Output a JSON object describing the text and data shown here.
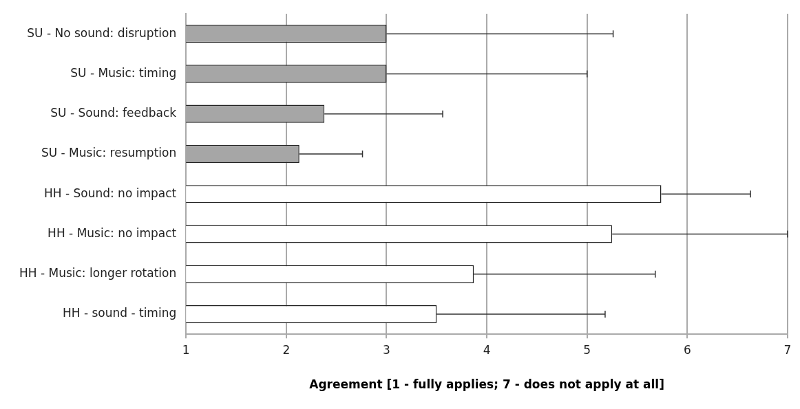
{
  "chart_data": {
    "type": "bar",
    "orientation": "horizontal",
    "xlabel": "Agreement [1 - fully applies; 7 - does not apply at all]",
    "categories": [
      "SU - No sound: disruption",
      "SU - Music: timing",
      "SU - Sound: feedback",
      "SU - Music: resumption",
      "HH - Sound: no impact",
      "HH - Music: no impact",
      "HH - Music: longer rotation",
      "HH - sound - timing"
    ],
    "values": [
      3.0,
      3.0,
      2.38,
      2.13,
      5.74,
      5.25,
      3.87,
      3.5
    ],
    "errors": [
      [
        3.0,
        5.26
      ],
      [
        3.0,
        5.0
      ],
      [
        2.38,
        3.56
      ],
      [
        2.13,
        2.76
      ],
      [
        5.74,
        6.63
      ],
      [
        5.25,
        7.0
      ],
      [
        3.87,
        5.68
      ],
      [
        3.5,
        5.18
      ]
    ],
    "colors": [
      "#a6a6a6",
      "#a6a6a6",
      "#a6a6a6",
      "#a6a6a6",
      "#ffffff",
      "#ffffff",
      "#ffffff",
      "#ffffff"
    ],
    "xlim": [
      1,
      7
    ],
    "xticks": [
      1,
      2,
      3,
      4,
      5,
      6,
      7
    ],
    "grid": "x",
    "legend": false
  }
}
